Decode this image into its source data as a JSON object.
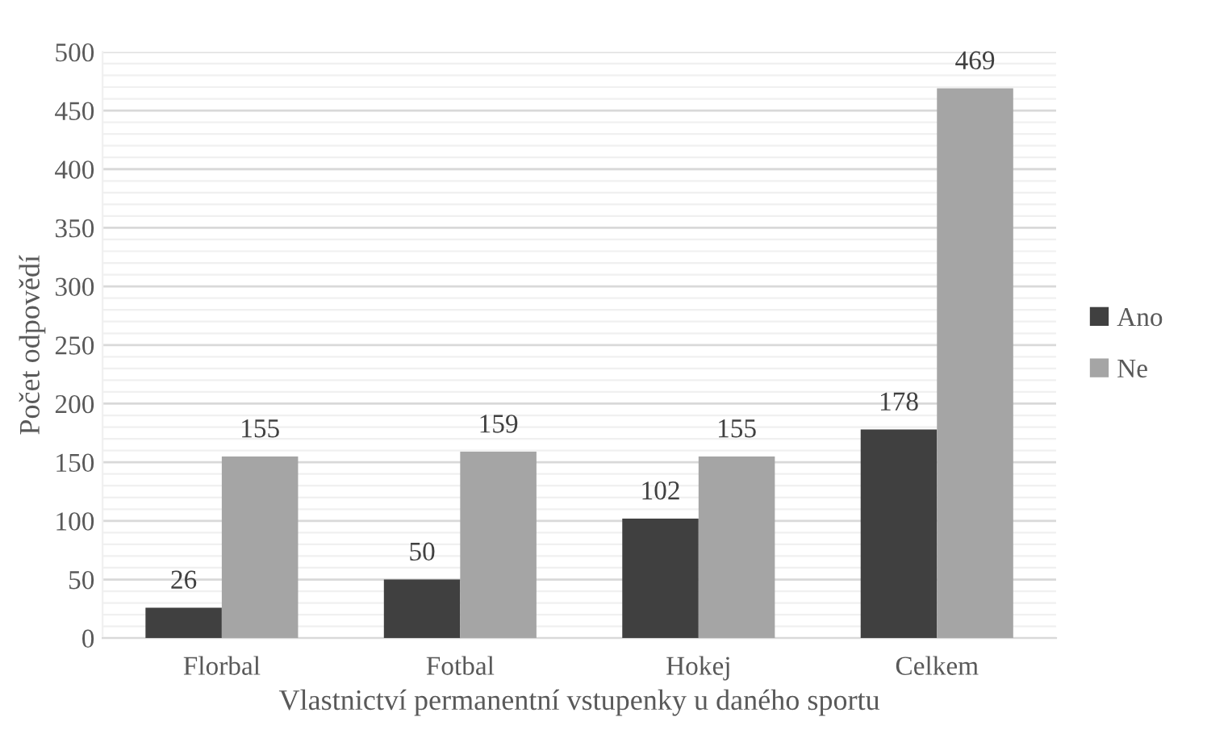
{
  "chart_data": {
    "type": "bar",
    "xlabel": "Vlastnictví permanentní vstupenky u daného sportu",
    "ylabel": "Počet odpovědí",
    "categories": [
      "Florbal",
      "Fotbal",
      "Hokej",
      "Celkem"
    ],
    "series": [
      {
        "name": "Ano",
        "color": "#404040",
        "values": [
          26,
          50,
          102,
          178
        ]
      },
      {
        "name": "Ne",
        "color": "#a5a5a5",
        "values": [
          155,
          159,
          155,
          469
        ]
      }
    ],
    "ylim": [
      0,
      500
    ],
    "yticks": [
      0,
      50,
      100,
      150,
      200,
      250,
      300,
      350,
      400,
      450,
      500
    ],
    "grid": "y",
    "legend": "right",
    "data_labels": true
  }
}
